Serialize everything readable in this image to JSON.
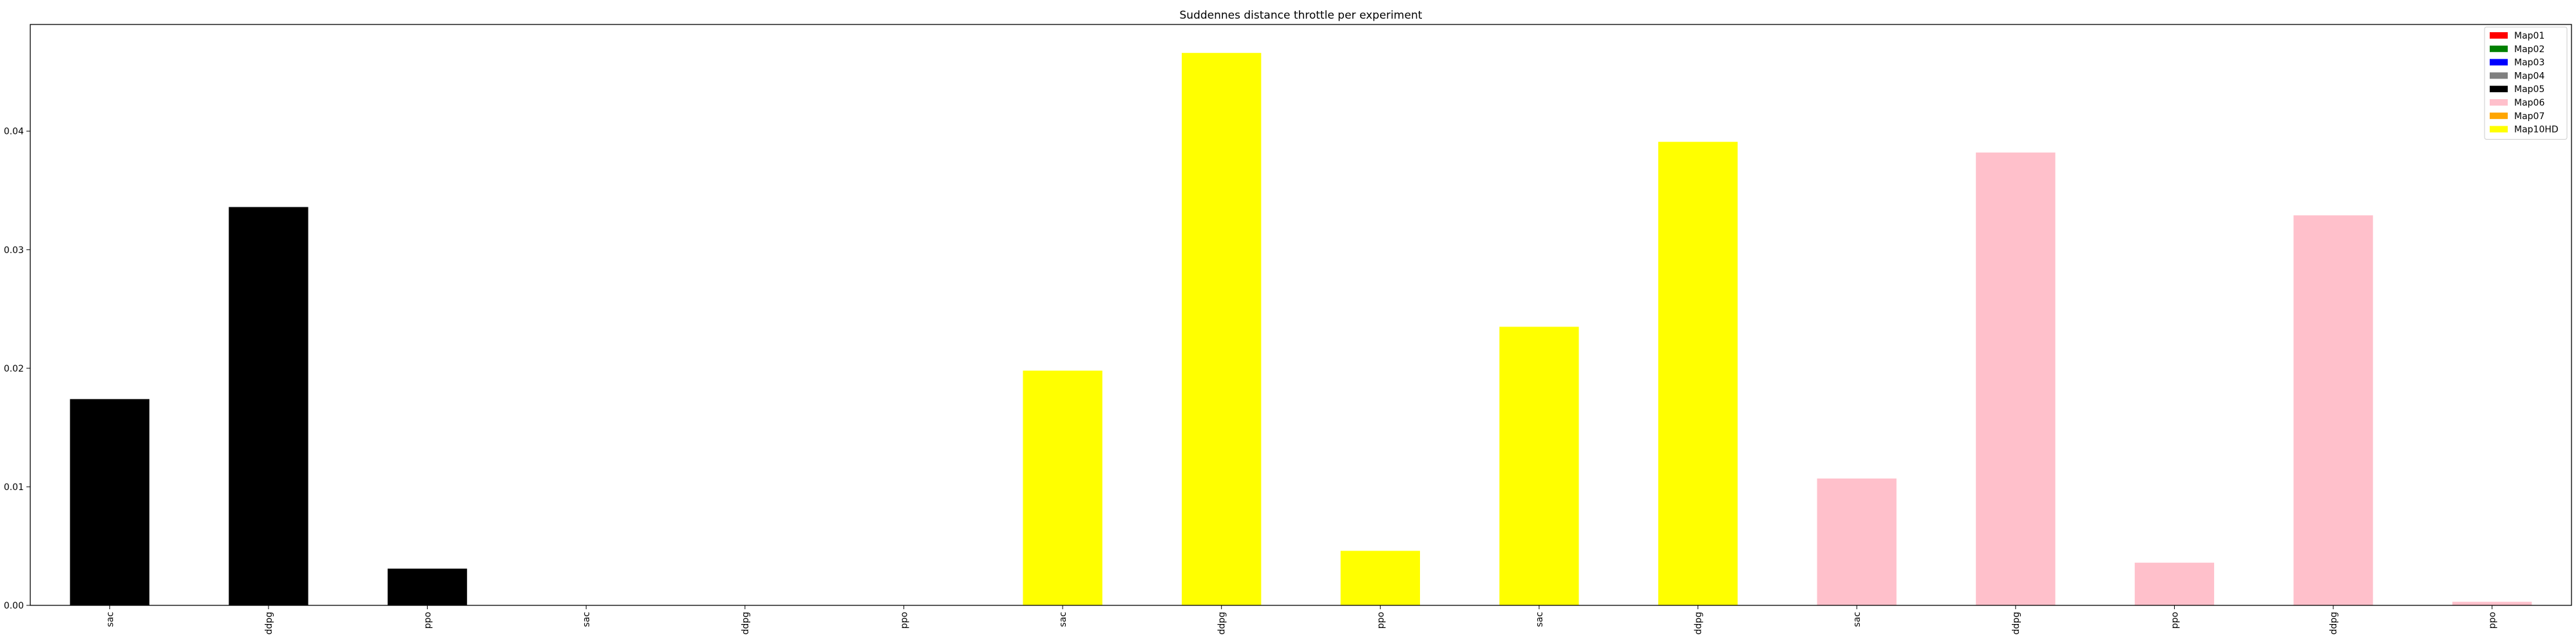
{
  "chart_data": {
    "type": "bar",
    "title": "Suddennes distance throttle per experiment",
    "xlabel": "",
    "ylabel": "",
    "ylim": [
      0,
      0.049
    ],
    "yticks": [
      0.0,
      0.01,
      0.02,
      0.03,
      0.04
    ],
    "ytick_labels": [
      "0.00",
      "0.01",
      "0.02",
      "0.03",
      "0.04"
    ],
    "grid": false,
    "legend_position": "top-right",
    "legend": [
      {
        "name": "Map01",
        "color": "#ff0000"
      },
      {
        "name": "Map02",
        "color": "#008000"
      },
      {
        "name": "Map03",
        "color": "#0000ff"
      },
      {
        "name": "Map04",
        "color": "#808080"
      },
      {
        "name": "Map05",
        "color": "#000000"
      },
      {
        "name": "Map06",
        "color": "#ffc0cb"
      },
      {
        "name": "Map07",
        "color": "#ffa500"
      },
      {
        "name": "Map10HD",
        "color": "#ffff00"
      }
    ],
    "categories": [
      "sac",
      "ddpg",
      "ppo",
      "sac",
      "ddpg",
      "ppo",
      "sac",
      "ddpg",
      "ppo",
      "sac",
      "ddpg",
      "sac",
      "ddpg",
      "ppo",
      "ddpg",
      "ppo"
    ],
    "values": [
      0.0174,
      0.0336,
      0.0031,
      0.0,
      0.0,
      0.0,
      0.0198,
      0.0466,
      0.0046,
      0.0235,
      0.0391,
      0.0107,
      0.0382,
      0.0036,
      0.0329,
      0.0003
    ],
    "bar_colors": [
      "#000000",
      "#000000",
      "#000000",
      "#000000",
      "#000000",
      "#000000",
      "#ffff00",
      "#ffff00",
      "#ffff00",
      "#ffff00",
      "#ffff00",
      "#ffc0cb",
      "#ffc0cb",
      "#ffc0cb",
      "#ffc0cb",
      "#ffc0cb"
    ]
  }
}
